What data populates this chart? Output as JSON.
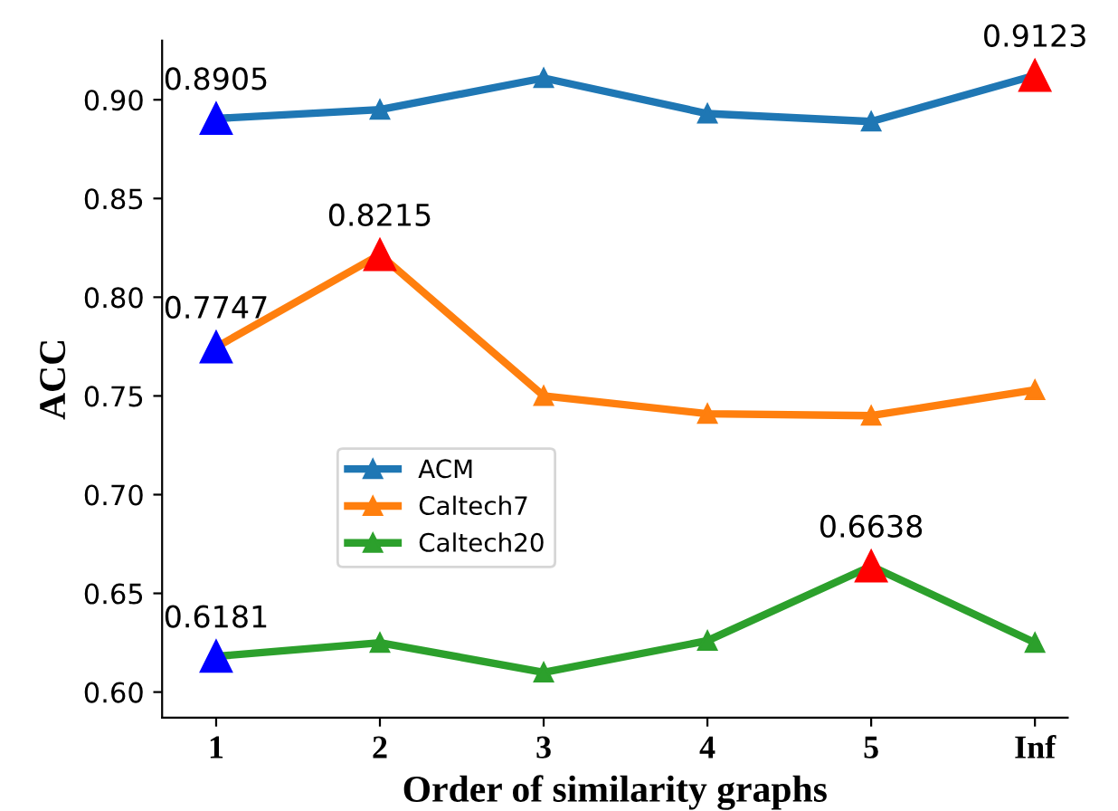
{
  "chart_data": {
    "type": "line",
    "xlabel": "Order of similarity graphs",
    "ylabel": "ACC",
    "categories": [
      "1",
      "2",
      "3",
      "4",
      "5",
      "Inf"
    ],
    "series": [
      {
        "name": "ACM",
        "color": "#1f77b4",
        "values": [
          0.8905,
          0.895,
          0.911,
          0.893,
          0.889,
          0.9123
        ],
        "colors": [
          "#0000ff",
          "#1f77b4",
          "#1f77b4",
          "#1f77b4",
          "#1f77b4",
          "#ff0000"
        ],
        "value_labels": [
          "0.8905",
          null,
          null,
          null,
          null,
          "0.9123"
        ]
      },
      {
        "name": "Caltech7",
        "color": "#ff7f0e",
        "values": [
          0.7747,
          0.8215,
          0.75,
          0.741,
          0.74,
          0.753
        ],
        "colors": [
          "#0000ff",
          "#ff0000",
          "#ff7f0e",
          "#ff7f0e",
          "#ff7f0e",
          "#ff7f0e"
        ],
        "value_labels": [
          "0.7747",
          "0.8215",
          null,
          null,
          null,
          null
        ]
      },
      {
        "name": "Caltech20",
        "color": "#2ca02c",
        "values": [
          0.6181,
          0.625,
          0.61,
          0.626,
          0.6638,
          0.625
        ],
        "colors": [
          "#0000ff",
          "#2ca02c",
          "#2ca02c",
          "#2ca02c",
          "#ff0000",
          "#2ca02c"
        ],
        "value_labels": [
          "0.6181",
          null,
          null,
          null,
          "0.6638",
          null
        ]
      }
    ],
    "ylim": [
      0.587,
      0.93
    ],
    "yticks": [
      {
        "value": 0.6,
        "label": "0.60"
      },
      0.65,
      {
        "value": 0.7,
        "label": "0.70"
      },
      0.75,
      {
        "value": 0.8,
        "label": "0.80"
      },
      0.85,
      {
        "value": 0.9,
        "label": "0.90"
      }
    ],
    "marker": "triangle",
    "line_style": "solid",
    "legend": "center left",
    "grid": false
  }
}
